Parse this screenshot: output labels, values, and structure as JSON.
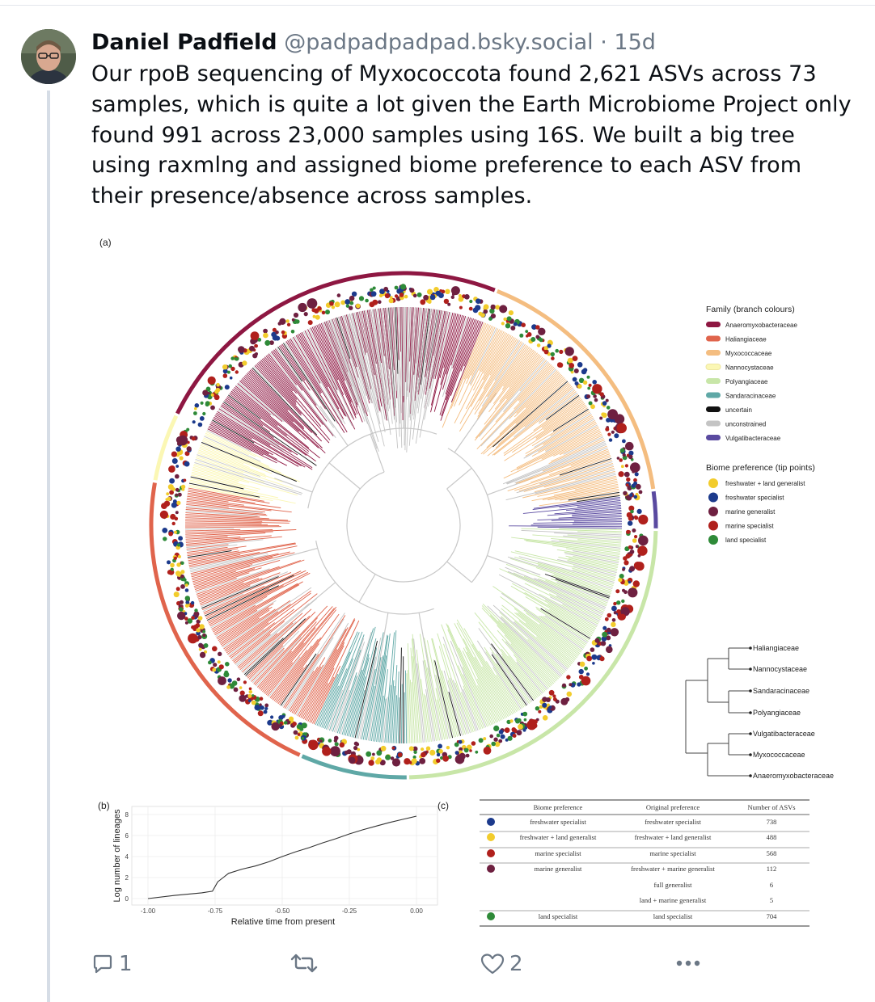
{
  "post": {
    "author_name": "Daniel Padfield",
    "handle": "@padpadpadpad.bsky.social",
    "separator": " · ",
    "age": "15d",
    "text": "Our rpoB sequencing of Myxococcota found 2,621 ASVs across 73 samples, which is quite a lot given the Earth Microbiome Project only found 991 across 23,000 samples using 16S. We built a big tree using raxmlng and assigned biome preference to each ASV from their presence/absence across samples."
  },
  "figure": {
    "panel_a": "(a)",
    "panel_b": "(b)",
    "panel_c": "(c)",
    "family_legend": {
      "title": "Family (branch colours)",
      "items": [
        {
          "label": "Anaeromyxobacteraceae",
          "color": "#8e1742"
        },
        {
          "label": "Haliangiaceae",
          "color": "#e0644c"
        },
        {
          "label": "Myxococcaceae",
          "color": "#f4bd80"
        },
        {
          "label": "Nannocystaceae",
          "color": "#fbf7b4"
        },
        {
          "label": "Polyangiaceae",
          "color": "#c8e6a8"
        },
        {
          "label": "Sandaracinaceae",
          "color": "#5fa8a6"
        },
        {
          "label": "uncertain",
          "color": "#111111"
        },
        {
          "label": "unconstrained",
          "color": "#c4c4c4"
        },
        {
          "label": "Vulgatibacteraceae",
          "color": "#5a4aa0"
        }
      ]
    },
    "biome_legend": {
      "title": "Biome preference (tip points)",
      "items": [
        {
          "label": "freshwater + land generalist",
          "color": "#f2cc2c"
        },
        {
          "label": "freshwater specialist",
          "color": "#1c3a8c"
        },
        {
          "label": "marine generalist",
          "color": "#6e2040"
        },
        {
          "label": "marine specialist",
          "color": "#b0201c"
        },
        {
          "label": "land specialist",
          "color": "#2e8a38"
        }
      ]
    },
    "cladogram_leaves": [
      "Haliangiaceae",
      "Nannocystaceae",
      "Sandaracinaceae",
      "Polyangiaceae",
      "Vulgatibacteraceae",
      "Myxococcaceae",
      "Anaeromyxobacteraceae"
    ],
    "table": {
      "headers": [
        "Biome preference",
        "Original preference",
        "Number of ASVs"
      ],
      "rows": [
        {
          "dot": "#1c3a8c",
          "biome": "freshwater specialist",
          "original": "freshwater specialist",
          "n": "738"
        },
        {
          "dot": "#f2cc2c",
          "biome": "freshwater + land generalist",
          "original": "freshwater + land generalist",
          "n": "488"
        },
        {
          "dot": "#b0201c",
          "biome": "marine specialist",
          "original": "marine specialist",
          "n": "568"
        },
        {
          "dot": "#6e2040",
          "biome": "marine generalist",
          "original": "freshwater + marine generalist",
          "n": "112"
        },
        {
          "dot": "",
          "biome": "",
          "original": "full generalist",
          "n": "6"
        },
        {
          "dot": "",
          "biome": "",
          "original": "land + marine generalist",
          "n": "5"
        },
        {
          "dot": "#2e8a38",
          "biome": "land specialist",
          "original": "land specialist",
          "n": "704"
        }
      ]
    }
  },
  "chart_data": {
    "type": "line",
    "xlabel": "Relative time from present",
    "ylabel": "Log number of lineages",
    "xlim": [
      -1.0,
      0.0
    ],
    "ylim": [
      0,
      8
    ],
    "x_ticks": [
      "-1.00",
      "-0.75",
      "-0.50",
      "-0.25",
      "0.00"
    ],
    "y_ticks": [
      "0",
      "2",
      "4",
      "6",
      "8"
    ],
    "x": [
      -1.0,
      -0.9,
      -0.8,
      -0.76,
      -0.74,
      -0.72,
      -0.7,
      -0.65,
      -0.6,
      -0.55,
      -0.5,
      -0.45,
      -0.4,
      -0.35,
      -0.3,
      -0.25,
      -0.2,
      -0.15,
      -0.1,
      -0.05,
      0.0
    ],
    "y": [
      0.0,
      0.3,
      0.55,
      0.7,
      1.6,
      2.0,
      2.4,
      2.8,
      3.1,
      3.5,
      4.0,
      4.45,
      4.85,
      5.3,
      5.7,
      6.15,
      6.55,
      6.9,
      7.25,
      7.55,
      7.85
    ]
  },
  "actions": {
    "reply_count": "1",
    "like_count": "2"
  }
}
